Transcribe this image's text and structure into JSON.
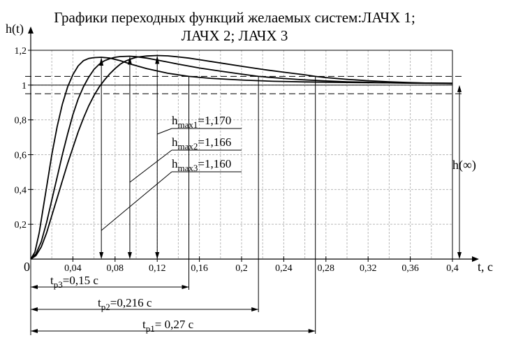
{
  "chart_data": {
    "type": "line",
    "title_line1": "Графики переходных функций  желаемых систем:ЛАЧХ 1;",
    "title_line2": "ЛАЧХ 2; ЛАЧХ 3",
    "ylabel": "h(t)",
    "xlabel": "t,  c",
    "origin_label": "0",
    "xlim": [
      0,
      0.4
    ],
    "ylim": [
      0,
      1.2
    ],
    "x_ticks": [
      {
        "v": 0.04,
        "label": "0,04"
      },
      {
        "v": 0.08,
        "label": "0,08"
      },
      {
        "v": 0.12,
        "label": "0,12"
      },
      {
        "v": 0.16,
        "label": "0,16"
      },
      {
        "v": 0.2,
        "label": "0,2"
      },
      {
        "v": 0.24,
        "label": "0,24"
      },
      {
        "v": 0.28,
        "label": "0,28"
      },
      {
        "v": 0.32,
        "label": "0,32"
      },
      {
        "v": 0.36,
        "label": "0,36"
      },
      {
        "v": 0.4,
        "label": "0,4"
      }
    ],
    "y_ticks": [
      {
        "v": 0.2,
        "label": "0,2"
      },
      {
        "v": 0.4,
        "label": "0,4"
      },
      {
        "v": 0.6,
        "label": "0,6"
      },
      {
        "v": 0.8,
        "label": "0,8"
      },
      {
        "v": 1.0,
        "label": "1"
      },
      {
        "v": 1.2,
        "label": "1,2"
      }
    ],
    "grid": true,
    "tolerance_band": [
      0.95,
      1.05
    ],
    "steady_state_label": "h(∞)",
    "series": [
      {
        "peak_t": 0.12,
        "peak_h": 1.17,
        "settle_t": 0.27,
        "points": [
          [
            0,
            0
          ],
          [
            0.005,
            0.02
          ],
          [
            0.01,
            0.07
          ],
          [
            0.015,
            0.15
          ],
          [
            0.02,
            0.25
          ],
          [
            0.025,
            0.35
          ],
          [
            0.03,
            0.45
          ],
          [
            0.035,
            0.55
          ],
          [
            0.04,
            0.64
          ],
          [
            0.045,
            0.73
          ],
          [
            0.05,
            0.81
          ],
          [
            0.055,
            0.88
          ],
          [
            0.06,
            0.94
          ],
          [
            0.065,
            0.99
          ],
          [
            0.07,
            1.03
          ],
          [
            0.075,
            1.065
          ],
          [
            0.08,
            1.095
          ],
          [
            0.085,
            1.12
          ],
          [
            0.09,
            1.138
          ],
          [
            0.095,
            1.15
          ],
          [
            0.1,
            1.16
          ],
          [
            0.11,
            1.167
          ],
          [
            0.12,
            1.17
          ],
          [
            0.13,
            1.168
          ],
          [
            0.14,
            1.162
          ],
          [
            0.15,
            1.155
          ],
          [
            0.16,
            1.146
          ],
          [
            0.18,
            1.127
          ],
          [
            0.2,
            1.108
          ],
          [
            0.22,
            1.09
          ],
          [
            0.24,
            1.074
          ],
          [
            0.26,
            1.059
          ],
          [
            0.27,
            1.05
          ],
          [
            0.28,
            1.043
          ],
          [
            0.3,
            1.033
          ],
          [
            0.32,
            1.025
          ],
          [
            0.34,
            1.019
          ],
          [
            0.36,
            1.014
          ],
          [
            0.38,
            1.011
          ],
          [
            0.4,
            1.008
          ]
        ]
      },
      {
        "peak_t": 0.094,
        "peak_h": 1.166,
        "settle_t": 0.216,
        "points": [
          [
            0,
            0
          ],
          [
            0.005,
            0.03
          ],
          [
            0.01,
            0.1
          ],
          [
            0.015,
            0.21
          ],
          [
            0.02,
            0.34
          ],
          [
            0.025,
            0.47
          ],
          [
            0.03,
            0.6
          ],
          [
            0.035,
            0.72
          ],
          [
            0.04,
            0.83
          ],
          [
            0.045,
            0.92
          ],
          [
            0.05,
            0.99
          ],
          [
            0.055,
            1.045
          ],
          [
            0.06,
            1.09
          ],
          [
            0.065,
            1.12
          ],
          [
            0.07,
            1.14
          ],
          [
            0.075,
            1.152
          ],
          [
            0.08,
            1.16
          ],
          [
            0.085,
            1.164
          ],
          [
            0.094,
            1.166
          ],
          [
            0.1,
            1.163
          ],
          [
            0.11,
            1.155
          ],
          [
            0.12,
            1.144
          ],
          [
            0.13,
            1.132
          ],
          [
            0.14,
            1.12
          ],
          [
            0.16,
            1.098
          ],
          [
            0.18,
            1.08
          ],
          [
            0.2,
            1.063
          ],
          [
            0.216,
            1.05
          ],
          [
            0.24,
            1.038
          ],
          [
            0.26,
            1.03
          ],
          [
            0.28,
            1.024
          ],
          [
            0.3,
            1.019
          ],
          [
            0.32,
            1.016
          ],
          [
            0.34,
            1.013
          ],
          [
            0.36,
            1.011
          ],
          [
            0.38,
            1.01
          ],
          [
            0.4,
            1.009
          ]
        ]
      },
      {
        "peak_t": 0.067,
        "peak_h": 1.16,
        "settle_t": 0.15,
        "points": [
          [
            0,
            0
          ],
          [
            0.004,
            0.04
          ],
          [
            0.008,
            0.15
          ],
          [
            0.012,
            0.3
          ],
          [
            0.016,
            0.45
          ],
          [
            0.02,
            0.6
          ],
          [
            0.025,
            0.76
          ],
          [
            0.03,
            0.89
          ],
          [
            0.035,
            0.99
          ],
          [
            0.04,
            1.06
          ],
          [
            0.045,
            1.11
          ],
          [
            0.05,
            1.14
          ],
          [
            0.055,
            1.153
          ],
          [
            0.06,
            1.158
          ],
          [
            0.067,
            1.16
          ],
          [
            0.075,
            1.155
          ],
          [
            0.085,
            1.14
          ],
          [
            0.095,
            1.12
          ],
          [
            0.11,
            1.095
          ],
          [
            0.13,
            1.068
          ],
          [
            0.15,
            1.05
          ],
          [
            0.17,
            1.039
          ],
          [
            0.2,
            1.029
          ],
          [
            0.23,
            1.022
          ],
          [
            0.26,
            1.018
          ],
          [
            0.3,
            1.015
          ],
          [
            0.34,
            1.013
          ],
          [
            0.4,
            1.011
          ]
        ]
      }
    ],
    "peak_labels": [
      {
        "pre": "h",
        "sub": "max1",
        "post": "=1,170"
      },
      {
        "pre": "h",
        "sub": "max2",
        "post": "=1,166"
      },
      {
        "pre": "h",
        "sub": "max3",
        "post": "=1,160"
      }
    ],
    "settling_labels": [
      {
        "pre": "t",
        "sub": "p3",
        "post": "=0,15 c",
        "t": 0.15
      },
      {
        "pre": "t",
        "sub": "p2",
        "post": "=0,216 c",
        "t": 0.216
      },
      {
        "pre": "t",
        "sub": "p1",
        "post": "= 0,27 c",
        "t": 0.27
      }
    ]
  }
}
